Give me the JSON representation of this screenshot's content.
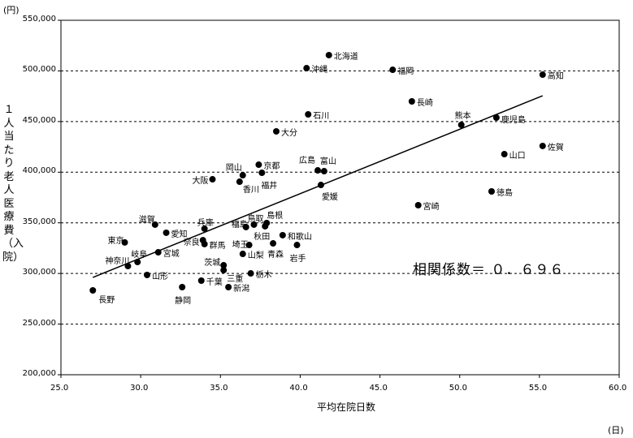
{
  "chart_data": {
    "type": "scatter",
    "title": "",
    "xlabel": "平均在院日数",
    "xunit": "(日)",
    "ylabel": "１人当たり老人医療費（入院）",
    "yunit": "(円)",
    "xlim": [
      25.0,
      60.0
    ],
    "ylim": [
      200000,
      550000
    ],
    "xticks": [
      "25.0",
      "30.0",
      "35.0",
      "40.0",
      "45.0",
      "50.0",
      "55.0",
      "60.0"
    ],
    "yticks": [
      "200,000",
      "250,000",
      "300,000",
      "350,000",
      "400,000",
      "450,000",
      "500,000",
      "550,000"
    ],
    "grid": "horizontal dashed",
    "annotation": "相関係数＝ ０．６９６",
    "trendline": {
      "x": [
        27.0,
        55.2
      ],
      "y": [
        296100,
        475500
      ]
    },
    "points": [
      {
        "name": "北海道",
        "x": 41.8,
        "y": 515600
      },
      {
        "name": "沖縄",
        "x": 40.4,
        "y": 502700
      },
      {
        "name": "福岡",
        "x": 45.8,
        "y": 501100
      },
      {
        "name": "高知",
        "x": 55.2,
        "y": 496300
      },
      {
        "name": "長崎",
        "x": 47.0,
        "y": 469900
      },
      {
        "name": "石川",
        "x": 40.5,
        "y": 457100
      },
      {
        "name": "熊本",
        "x": 50.1,
        "y": 446700
      },
      {
        "name": "鹿児島",
        "x": 52.3,
        "y": 453900
      },
      {
        "name": "大分",
        "x": 38.5,
        "y": 440300
      },
      {
        "name": "佐賀",
        "x": 55.2,
        "y": 425900
      },
      {
        "name": "山口",
        "x": 52.8,
        "y": 417800
      },
      {
        "name": "京都",
        "x": 37.4,
        "y": 407400
      },
      {
        "name": "福井",
        "x": 37.6,
        "y": 399400
      },
      {
        "name": "岡山",
        "x": 36.4,
        "y": 397000
      },
      {
        "name": "香川",
        "x": 36.2,
        "y": 390600
      },
      {
        "name": "大阪",
        "x": 34.5,
        "y": 393000
      },
      {
        "name": "広島",
        "x": 41.1,
        "y": 401800
      },
      {
        "name": "富山",
        "x": 41.5,
        "y": 401000
      },
      {
        "name": "愛媛",
        "x": 41.3,
        "y": 387400
      },
      {
        "name": "徳島",
        "x": 52.0,
        "y": 381000
      },
      {
        "name": "宮崎",
        "x": 47.4,
        "y": 367400
      },
      {
        "name": "滋賀",
        "x": 30.9,
        "y": 348200
      },
      {
        "name": "愛知",
        "x": 31.6,
        "y": 340200
      },
      {
        "name": "兵庫",
        "x": 34.0,
        "y": 344200
      },
      {
        "name": "福島",
        "x": 36.6,
        "y": 345800
      },
      {
        "name": "鳥取",
        "x": 37.1,
        "y": 348200
      },
      {
        "name": "島根",
        "x": 37.9,
        "y": 349800
      },
      {
        "name": "秋田",
        "x": 37.8,
        "y": 346600
      },
      {
        "name": "和歌山",
        "x": 38.9,
        "y": 337800
      },
      {
        "name": "奈良",
        "x": 33.9,
        "y": 332900
      },
      {
        "name": "群馬",
        "x": 34.0,
        "y": 329000
      },
      {
        "name": "東京",
        "x": 29.0,
        "y": 330600
      },
      {
        "name": "埼玉",
        "x": 36.8,
        "y": 328100
      },
      {
        "name": "青森",
        "x": 38.3,
        "y": 329700
      },
      {
        "name": "岩手",
        "x": 39.8,
        "y": 328100
      },
      {
        "name": "宮城",
        "x": 31.1,
        "y": 320900
      },
      {
        "name": "岐阜",
        "x": 29.8,
        "y": 311300
      },
      {
        "name": "神奈川",
        "x": 29.2,
        "y": 307300
      },
      {
        "name": "山梨",
        "x": 36.4,
        "y": 319300
      },
      {
        "name": "茨城",
        "x": 35.2,
        "y": 308100
      },
      {
        "name": "三重",
        "x": 35.2,
        "y": 303300
      },
      {
        "name": "栃木",
        "x": 36.9,
        "y": 300100
      },
      {
        "name": "山形",
        "x": 30.4,
        "y": 298500
      },
      {
        "name": "千葉",
        "x": 33.8,
        "y": 292900
      },
      {
        "name": "静岡",
        "x": 32.6,
        "y": 286500
      },
      {
        "name": "新潟",
        "x": 35.5,
        "y": 286500
      },
      {
        "name": "長野",
        "x": 27.0,
        "y": 283300
      }
    ]
  }
}
